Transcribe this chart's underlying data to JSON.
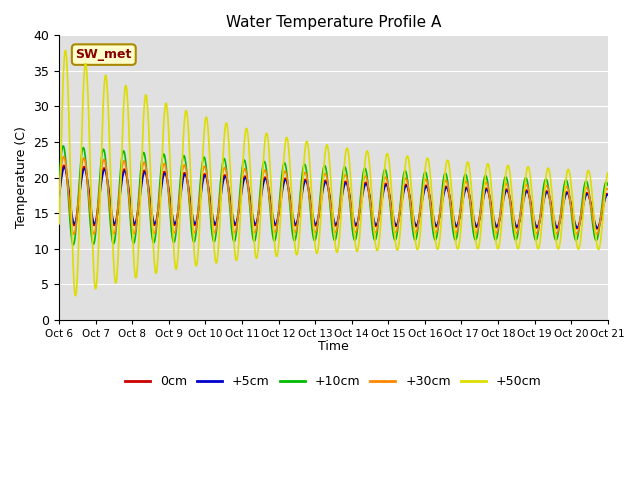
{
  "title": "Water Temperature Profile A",
  "xlabel": "Time",
  "ylabel": "Temperature (C)",
  "xlim": [
    0,
    15
  ],
  "ylim": [
    0,
    40
  ],
  "yticks": [
    0,
    5,
    10,
    15,
    20,
    25,
    30,
    35,
    40
  ],
  "xtick_labels": [
    "Oct 6",
    "Oct 7",
    "Oct 8",
    "Oct 9",
    "Oct 10",
    "Oct 11",
    "Oct 12",
    "Oct 13",
    "Oct 14",
    "Oct 15",
    "Oct 16",
    "Oct 17",
    "Oct 18",
    "Oct 19",
    "Oct 20",
    "Oct 21"
  ],
  "legend_labels": [
    "0cm",
    "+5cm",
    "+10cm",
    "+30cm",
    "+50cm"
  ],
  "legend_colors": [
    "#cc0000",
    "#0000cc",
    "#00bb00",
    "#ff8800",
    "#dddd00"
  ],
  "annotation_text": "SW_met",
  "annotation_fg": "#880000",
  "annotation_bg": "#ffffcc",
  "annotation_edge": "#aa8800",
  "bg_color": "#e0e0e0",
  "line_width": 1.2
}
